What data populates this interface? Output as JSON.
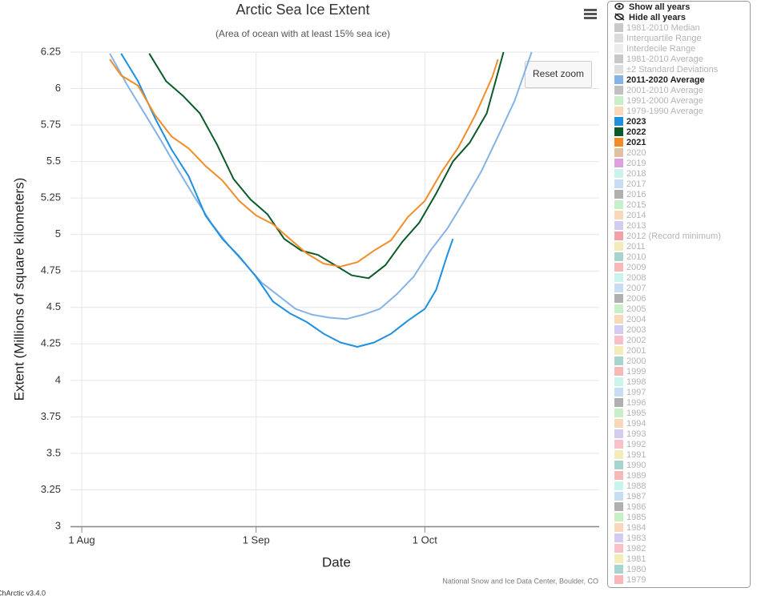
{
  "chart_data": {
    "type": "line",
    "title": "Arctic Sea Ice Extent",
    "subtitle": "(Area of ocean with at least 15% sea ice)",
    "y_label": "Extent (Millions of square kilometers)",
    "x_label": "Date",
    "credit": "National Snow and Ice Data Center, Boulder, CO",
    "version": "ChArctic v3.4.0",
    "reset_button": "Reset zoom",
    "controls": [
      "Show all years",
      "Hide all years"
    ],
    "xlim": [
      -2,
      92
    ],
    "xticks": [
      {
        "value": 0,
        "label": "1 Aug"
      },
      {
        "value": 31,
        "label": "1 Sep"
      },
      {
        "value": 61,
        "label": "1 Oct"
      }
    ],
    "ylim": [
      3,
      6.25
    ],
    "yticks": [
      3,
      3.25,
      3.5,
      3.75,
      4,
      4.25,
      4.5,
      4.75,
      5,
      5.25,
      5.5,
      5.75,
      6,
      6.25
    ],
    "grid": true,
    "series": [
      {
        "name": "2011-2020 Average",
        "color": "#84b4e6",
        "x": [
          5,
          8,
          11,
          14,
          17,
          20,
          23,
          26,
          29,
          32,
          35,
          38,
          41,
          44,
          47,
          50,
          53,
          56,
          59,
          62,
          65,
          68,
          71,
          74,
          77,
          80
        ],
        "values": [
          6.24,
          6.03,
          5.84,
          5.65,
          5.45,
          5.26,
          5.08,
          4.93,
          4.8,
          4.67,
          4.58,
          4.49,
          4.45,
          4.43,
          4.42,
          4.45,
          4.49,
          4.59,
          4.71,
          4.89,
          5.04,
          5.23,
          5.43,
          5.67,
          5.92,
          6.25
        ]
      },
      {
        "name": "2023",
        "color": "#1e90e0",
        "x": [
          7,
          10,
          13,
          16,
          19,
          22,
          25,
          28,
          31,
          34,
          37,
          40,
          43,
          46,
          49,
          52,
          55,
          58,
          61,
          63,
          65,
          66
        ],
        "values": [
          6.24,
          6.05,
          5.8,
          5.58,
          5.4,
          5.13,
          4.97,
          4.85,
          4.71,
          4.54,
          4.46,
          4.4,
          4.32,
          4.26,
          4.23,
          4.26,
          4.32,
          4.41,
          4.49,
          4.62,
          4.86,
          4.97
        ]
      },
      {
        "name": "2022",
        "color": "#0b5a2a",
        "x": [
          12,
          15,
          18,
          21,
          24,
          27,
          30,
          33,
          36,
          39,
          42,
          45,
          48,
          51,
          54,
          57,
          60,
          63,
          66,
          69,
          72,
          75
        ],
        "values": [
          6.24,
          6.05,
          5.95,
          5.83,
          5.62,
          5.38,
          5.24,
          5.14,
          4.97,
          4.89,
          4.86,
          4.79,
          4.72,
          4.7,
          4.79,
          4.95,
          5.08,
          5.28,
          5.5,
          5.63,
          5.83,
          6.25
        ]
      },
      {
        "name": "2021",
        "color": "#f28c28",
        "x": [
          5,
          7,
          10,
          13,
          16,
          19,
          22,
          25,
          28,
          31,
          34,
          37,
          40,
          43,
          46,
          49,
          52,
          55,
          58,
          61,
          64,
          67,
          70,
          73,
          74
        ],
        "values": [
          6.2,
          6.09,
          6.02,
          5.82,
          5.67,
          5.59,
          5.47,
          5.37,
          5.23,
          5.13,
          5.07,
          4.97,
          4.87,
          4.8,
          4.78,
          4.81,
          4.89,
          4.96,
          5.12,
          5.23,
          5.43,
          5.6,
          5.82,
          6.08,
          6.2
        ]
      }
    ],
    "legend_items": [
      {
        "name": "1981-2010 Median",
        "color": "#c8c8c8"
      },
      {
        "name": "Interquartile Range",
        "color": "#dcdcdc"
      },
      {
        "name": "Interdecile Range",
        "color": "#ececec"
      },
      {
        "name": "1981-2010 Average",
        "color": "#c8c8c8"
      },
      {
        "name": "±2 Standard Deviations",
        "color": "#dddddd"
      },
      {
        "name": "2001-2010 Average",
        "color": "#c0c0c0"
      },
      {
        "name": "1991-2000 Average",
        "color": "#c8f0c8"
      },
      {
        "name": "1979-1990 Average",
        "color": "#f8d8b8"
      },
      {
        "name": "2020",
        "color": "#e0c0a0"
      },
      {
        "name": "2019",
        "color": "#e0a0e0"
      },
      {
        "name": "2018",
        "color": "#c8f4ec"
      },
      {
        "name": "2017",
        "color": "#c8dcf4"
      },
      {
        "name": "2016",
        "color": "#b0b0b0"
      },
      {
        "name": "2015",
        "color": "#c8f0c8"
      },
      {
        "name": "2014",
        "color": "#f8d8b8"
      },
      {
        "name": "2013",
        "color": "#d4ccf0"
      },
      {
        "name": "2012 (Record minimum)",
        "color": "#f4a0a8"
      },
      {
        "name": "2011",
        "color": "#f4ecb8"
      },
      {
        "name": "2010",
        "color": "#a8d4d0"
      },
      {
        "name": "2009",
        "color": "#f8b8b8"
      },
      {
        "name": "2008",
        "color": "#c8f4ec"
      },
      {
        "name": "2007",
        "color": "#c8dcf4"
      },
      {
        "name": "2006",
        "color": "#b0b0b0"
      },
      {
        "name": "2005",
        "color": "#c8f0c8"
      },
      {
        "name": "2004",
        "color": "#f8d8b8"
      },
      {
        "name": "2003",
        "color": "#d4ccf0"
      },
      {
        "name": "2002",
        "color": "#f8c0c8"
      },
      {
        "name": "2001",
        "color": "#f4ecb8"
      },
      {
        "name": "2000",
        "color": "#a8d4d0"
      },
      {
        "name": "1999",
        "color": "#f8b8b8"
      },
      {
        "name": "1998",
        "color": "#c8f4ec"
      },
      {
        "name": "1997",
        "color": "#c8dcf4"
      },
      {
        "name": "1996",
        "color": "#b0b0b0"
      },
      {
        "name": "1995",
        "color": "#c8f0c8"
      },
      {
        "name": "1994",
        "color": "#f8d8b8"
      },
      {
        "name": "1993",
        "color": "#d4ccf0"
      },
      {
        "name": "1992",
        "color": "#f8c0c8"
      },
      {
        "name": "1991",
        "color": "#f4ecb8"
      },
      {
        "name": "1990",
        "color": "#a8d4d0"
      },
      {
        "name": "1989",
        "color": "#f8b8b8"
      },
      {
        "name": "1988",
        "color": "#c8f4ec"
      },
      {
        "name": "1987",
        "color": "#c8dcf4"
      },
      {
        "name": "1986",
        "color": "#b0b0b0"
      },
      {
        "name": "1985",
        "color": "#c8f0c8"
      },
      {
        "name": "1984",
        "color": "#f8d8b8"
      },
      {
        "name": "1983",
        "color": "#d4ccf0"
      },
      {
        "name": "1982",
        "color": "#f8c0c8"
      },
      {
        "name": "1981",
        "color": "#f4ecb8"
      },
      {
        "name": "1980",
        "color": "#a8d4d0"
      },
      {
        "name": "1979",
        "color": "#f8b8b8"
      }
    ]
  }
}
